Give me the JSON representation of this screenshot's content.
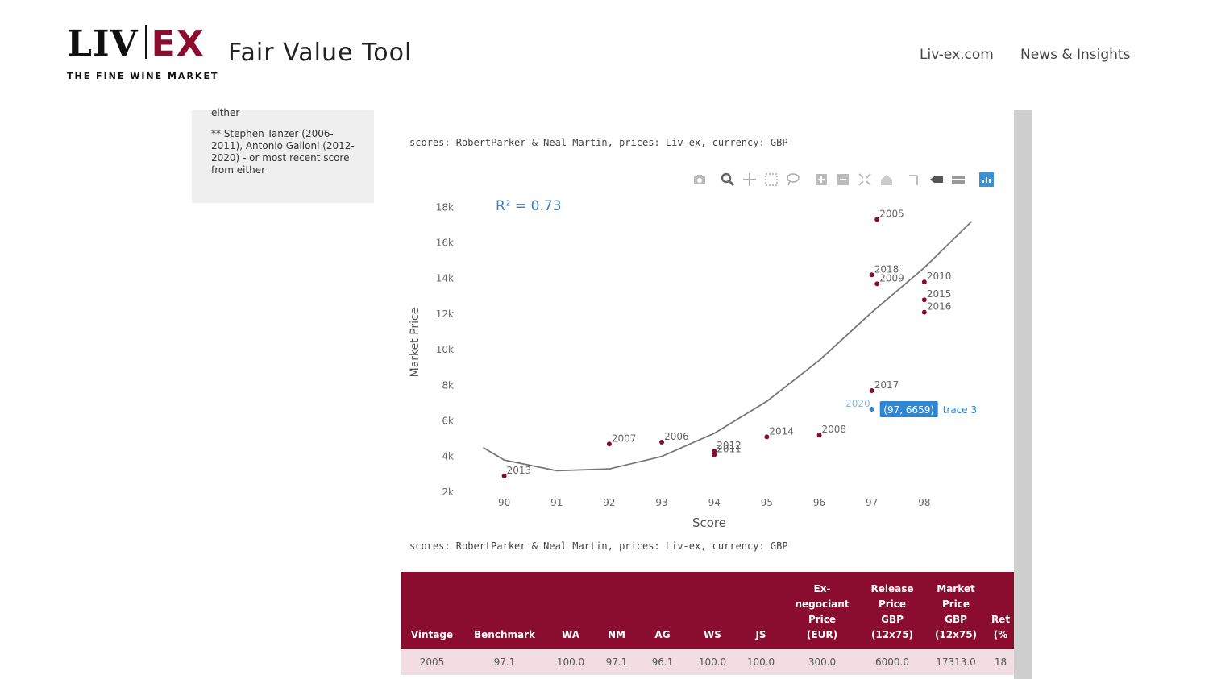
{
  "header": {
    "logo_left": "LIV",
    "logo_right": "EX",
    "logo_tagline": "THE FINE WINE MARKET",
    "app_title": "Fair Value Tool",
    "nav": [
      "Liv-ex.com",
      "News & Insights"
    ]
  },
  "sidebar": {
    "top_text": "either",
    "note": "** Stephen Tanzer (2006-2011), Antonio Galloni (2012-2020) - or most recent score from either"
  },
  "source_line": "scores: RobertParker & Neal Martin, prices: Liv-ex, currency: GBP",
  "toolbar_icons": [
    "camera-icon",
    "zoom-icon",
    "pan-icon",
    "box-select-icon",
    "lasso-select-icon",
    "zoom-in-icon",
    "zoom-out-icon",
    "autoscale-icon",
    "reset-axes-icon",
    "spike-lines-icon",
    "hover-closest-icon",
    "hover-compare-icon",
    "plotly-logo-icon"
  ],
  "chart_data": {
    "type": "scatter",
    "annotation": "R² = 0.73",
    "xlabel": "Score",
    "ylabel": "Market Price",
    "x_ticks": [
      "90",
      "91",
      "92",
      "93",
      "94",
      "95",
      "96",
      "97",
      "98"
    ],
    "y_ticks": [
      "2k",
      "4k",
      "6k",
      "8k",
      "10k",
      "12k",
      "14k",
      "16k",
      "18k"
    ],
    "xlim": [
      89.3,
      99
    ],
    "ylim": [
      1500,
      18600
    ],
    "points": [
      {
        "label": "2005",
        "x": 97.1,
        "y": 17313
      },
      {
        "label": "2018",
        "x": 97.0,
        "y": 14200
      },
      {
        "label": "2009",
        "x": 97.1,
        "y": 13700
      },
      {
        "label": "2010",
        "x": 98.0,
        "y": 13800
      },
      {
        "label": "2015",
        "x": 98.0,
        "y": 12800
      },
      {
        "label": "2016",
        "x": 98.0,
        "y": 12100
      },
      {
        "label": "2017",
        "x": 97.0,
        "y": 7700
      },
      {
        "label": "2020",
        "x": 97.0,
        "y": 6659
      },
      {
        "label": "2007",
        "x": 92.0,
        "y": 4700
      },
      {
        "label": "2006",
        "x": 93.0,
        "y": 4800
      },
      {
        "label": "2012",
        "x": 94.0,
        "y": 4300
      },
      {
        "label": "2011",
        "x": 94.0,
        "y": 4100
      },
      {
        "label": "2014",
        "x": 95.0,
        "y": 5100
      },
      {
        "label": "2008",
        "x": 96.0,
        "y": 5200
      },
      {
        "label": "2013",
        "x": 90.0,
        "y": 2900
      }
    ],
    "trend": {
      "type": "quadratic fit",
      "curve_x": [
        89.6,
        90,
        91,
        92,
        93,
        94,
        95,
        96,
        97,
        98,
        98.9
      ],
      "curve_y": [
        4500,
        3800,
        3200,
        3300,
        4000,
        5300,
        7100,
        9400,
        12100,
        14600,
        17200
      ]
    },
    "hover_label": {
      "text": "(97, 6659)",
      "trace": "trace 3"
    },
    "colors": {
      "points": "#8a0c2e",
      "trend": "#777777",
      "annotation": "#3a7fc1",
      "hover": "#2f86d3"
    }
  },
  "table": {
    "headers": [
      "Vintage",
      "Benchmark",
      "WA",
      "NM",
      "AG",
      "WS",
      "JS",
      "Ex-\nnegociant\nPrice\n(EUR)",
      "Release\nPrice\nGBP\n(12x75)",
      "Market\nPrice\nGBP\n(12x75)",
      "Ret\n(%"
    ],
    "rows": [
      [
        "2005",
        "97.1",
        "100.0",
        "97.1",
        "96.1",
        "100.0",
        "100.0",
        "300.0",
        "6000.0",
        "17313.0",
        "18"
      ]
    ]
  },
  "colors": {
    "brand": "#8a0c2e",
    "row_bg": "#f2dde3",
    "sidebar_bg": "#efefef",
    "scrollbar": "#cfcfcf"
  }
}
